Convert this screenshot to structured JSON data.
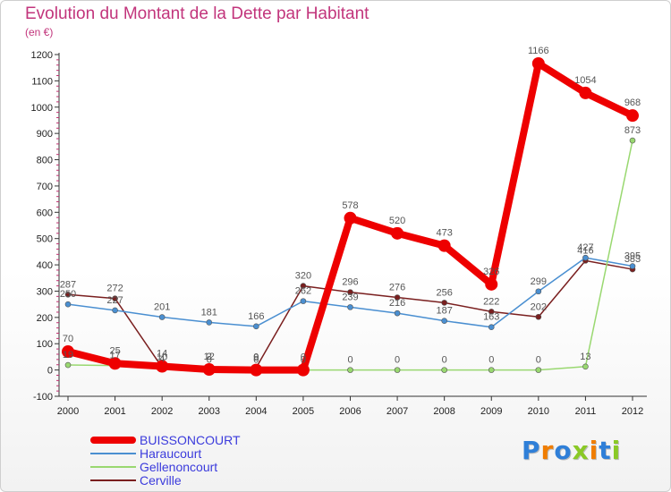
{
  "chart_data": {
    "type": "line",
    "title": "Evolution du Montant de la Dette par Habitant",
    "subtitle": "(en €)",
    "xlabel": "",
    "ylabel": "",
    "ylim": [
      -100,
      1200
    ],
    "yticks": [
      -100,
      0,
      100,
      200,
      300,
      400,
      500,
      600,
      700,
      800,
      900,
      1000,
      1100,
      1200
    ],
    "x": [
      "2000",
      "2001",
      "2002",
      "2003",
      "2004",
      "2005",
      "2006",
      "2007",
      "2008",
      "2009",
      "2010",
      "2011",
      "2012"
    ],
    "grid": false,
    "legend": "bottom-left",
    "series": [
      {
        "name": "Cerville",
        "color": "#7a1f1f",
        "values": [
          287,
          272,
          10,
          12,
          9,
          320,
          296,
          276,
          256,
          222,
          202,
          416,
          383
        ]
      },
      {
        "name": "Haraucourt",
        "color": "#4a8fd1",
        "values": [
          250,
          227,
          201,
          181,
          166,
          262,
          239,
          216,
          187,
          163,
          299,
          427,
          395
        ]
      },
      {
        "name": "Gellenoncourt",
        "color": "#99d870",
        "values": [
          19,
          17,
          4,
          0,
          0,
          0,
          0,
          0,
          0,
          0,
          0,
          13,
          873
        ]
      },
      {
        "name": "BUISSONCOURT",
        "color": "#ee0000",
        "values": [
          70,
          25,
          14,
          2,
          0,
          0,
          578,
          520,
          473,
          326,
          1166,
          1054,
          968
        ]
      }
    ]
  },
  "legend_items": [
    {
      "name": "BUISSONCOURT",
      "color": "#ee0000"
    },
    {
      "name": "Haraucourt",
      "color": "#4a8fd1"
    },
    {
      "name": "Gellenoncourt",
      "color": "#99d870"
    },
    {
      "name": "Cerville",
      "color": "#7a1f1f"
    }
  ],
  "logo": {
    "text": "Proxiti",
    "colors": [
      "#2f7fd8",
      "#f07d00",
      "#2f7fd8",
      "#8ac926",
      "#f07d00",
      "#2f7fd8",
      "#8ac926"
    ]
  }
}
